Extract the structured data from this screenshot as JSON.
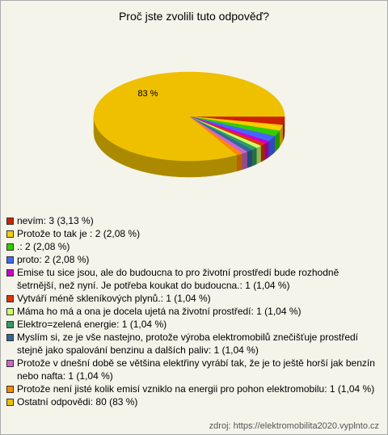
{
  "chart_data": {
    "type": "pie",
    "title": "Proč jste zvolili tuto odpověď?",
    "categories": [
      "nevím: 3 (3,13 %)",
      "Protože to tak je : 2 (2,08 %)",
      ".: 2 (2,08 %)",
      "proto: 2 (2,08 %)",
      "Emise tu sice jsou, ale do budoucna to pro životní prostředí bude rozhodně šetrnější, než nyní. Je potřeba koukat do budoucna.: 1 (1,04 %)",
      "Vytváří méně skleníkových plynů.: 1 (1,04 %)",
      "Máma ho má a ona je docela ujetá na životní prostředí: 1 (1,04 %)",
      "Elektro=zelená energie: 1 (1,04 %)",
      "Myslím si, ze je vše nastejno, protože výroba elektromobilů znečišťuje prostředí stejně jako spalování benzinu a dalších paliv: 1 (1,04 %)",
      "Protože v dnešní době se většina elektřiny vyrábí tak, že je to ještě horší jak benzín nebo nafta: 1 (1,04 %)",
      "Protože není jisté kolik emisí vzniklo na energii pro pohon elektromobilu: 1 (1,04 %)",
      "Ostatní odpovědi: 80 (83 %)"
    ],
    "values": [
      3.13,
      2.08,
      2.08,
      2.08,
      1.04,
      1.04,
      1.04,
      1.04,
      1.04,
      1.04,
      1.04,
      83
    ],
    "value_labels": [
      null,
      null,
      null,
      null,
      null,
      null,
      null,
      null,
      null,
      null,
      null,
      "83 %"
    ],
    "colors": [
      "#cc2200",
      "#ffcc00",
      "#33cc00",
      "#4466ff",
      "#cc00cc",
      "#dd3300",
      "#ccff66",
      "#339966",
      "#336699",
      "#cc66cc",
      "#ff8800",
      "#eec000"
    ],
    "source": "zdroj: https://elektromobilita2020.vyplnto.cz"
  }
}
